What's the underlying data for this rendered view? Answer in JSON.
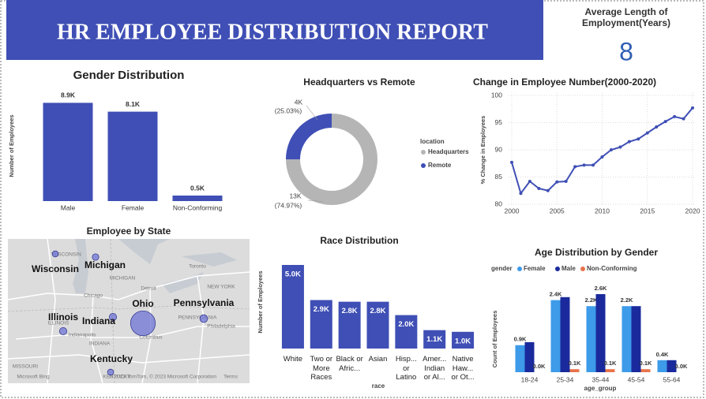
{
  "header": {
    "title": "HR EMPLOYEE DISTRIBUTION REPORT"
  },
  "kpi": {
    "label": "Average Length of Employment(Years)",
    "value": 8
  },
  "chart_data": [
    {
      "type": "bar",
      "title": "Gender Distribution",
      "y_label": "Number of Employees",
      "categories": [
        "Male",
        "Female",
        "Non-Conforming"
      ],
      "values": [
        8900,
        8100,
        500
      ],
      "value_labels": [
        "8.9K",
        "8.1K",
        "0.5K"
      ],
      "color": "#3f4fb5",
      "ylim": [
        0,
        9000
      ]
    },
    {
      "type": "donut",
      "title": "Headquarters vs Remote",
      "legend_title": "location",
      "categories": [
        "Headquarters",
        "Remote"
      ],
      "values": [
        74.97,
        25.03
      ],
      "value_labels": [
        "(74.97%)",
        "(25.03%)"
      ],
      "count_labels": [
        "13K",
        "4K"
      ],
      "colors": [
        "#b5b5b5",
        "#3f4fb5"
      ],
      "legend": "right"
    },
    {
      "type": "line",
      "title": "Change in Employee Number(2000-2020)",
      "y_label": "% Change in Employees",
      "x": [
        2000,
        2001,
        2002,
        2003,
        2004,
        2005,
        2006,
        2007,
        2008,
        2009,
        2010,
        2011,
        2012,
        2013,
        2014,
        2015,
        2016,
        2017,
        2018,
        2019,
        2020
      ],
      "values": [
        87.7,
        82.0,
        84.2,
        82.9,
        82.5,
        84.1,
        84.2,
        86.9,
        87.2,
        87.2,
        88.7,
        90.0,
        90.5,
        91.5,
        92.0,
        93.1,
        94.2,
        95.2,
        96.1,
        95.7,
        97.7
      ],
      "color": "#3f4fb5",
      "xlim": [
        2000,
        2020
      ],
      "ylim": [
        80,
        100
      ],
      "xticks": [
        2000,
        2005,
        2010,
        2015,
        2020
      ],
      "yticks": [
        80,
        85,
        90,
        95,
        100
      ],
      "grid": true
    },
    {
      "type": "map",
      "title": "Employee by State",
      "categories": [
        "Wisconsin",
        "Michigan",
        "Illinois",
        "Indiana",
        "Ohio",
        "Pennsylvania",
        "Kentucky"
      ],
      "values": [
        400,
        500,
        700,
        700,
        14000,
        800,
        400
      ],
      "color": "#6f74d6",
      "basemap_labels": [
        "WISCONSIN",
        "MICHIGAN",
        "Detroit",
        "Toronto",
        "Chicago",
        "NEW YORK",
        "ILLINOIS",
        "PENNSYLVANIA",
        "Indianapolis",
        "INDIANA",
        "Columbus",
        "Philadelphia",
        "MISSOURI",
        "KENTUCKY",
        "Microsoft Bing",
        "© 2023 TomTom, © 2023 Microsoft Corporation",
        "Terms"
      ]
    },
    {
      "type": "bar",
      "title": "Race Distribution",
      "x_label": "race",
      "y_label": "Number of Employees",
      "categories": [
        "White",
        "Two or More Races",
        "Black or Afric...",
        "Asian",
        "Hisp... or Latino",
        "Amer... Indian or Al...",
        "Native Haw... or Ot..."
      ],
      "values": [
        5000,
        2900,
        2800,
        2800,
        2000,
        1100,
        1000
      ],
      "value_labels": [
        "5.0K",
        "2.9K",
        "2.8K",
        "2.8K",
        "2.0K",
        "1.1K",
        "1.0K"
      ],
      "color": "#3f4fb5",
      "ylim": [
        0,
        5000
      ]
    },
    {
      "type": "grouped_bar",
      "title": "Age Distribution by Gender",
      "x_label": "age_group",
      "y_label": "Count of Employees",
      "legend_title": "gender",
      "legend": "top",
      "categories": [
        "18-24",
        "25-34",
        "35-44",
        "45-54",
        "55-64"
      ],
      "series": [
        {
          "name": "Female",
          "color": "#3d9be9",
          "values": [
            900,
            2400,
            2200,
            2200,
            400
          ],
          "value_labels": [
            "0.9K",
            "2.4K",
            "2.2K",
            "2.2K",
            "0.4K"
          ]
        },
        {
          "name": "Male",
          "color": "#1a2a9c",
          "values": [
            1000,
            2500,
            2600,
            2200,
            400
          ],
          "value_labels": [
            null,
            null,
            "2.6K",
            null,
            null
          ]
        },
        {
          "name": "Non-Conforming",
          "color": "#e8734a",
          "values": [
            0,
            100,
            100,
            100,
            0
          ],
          "value_labels": [
            "0.0K",
            "0.1K",
            "0.1K",
            "0.1K",
            "0.0K"
          ]
        }
      ],
      "ylim": [
        0,
        2600
      ]
    }
  ]
}
